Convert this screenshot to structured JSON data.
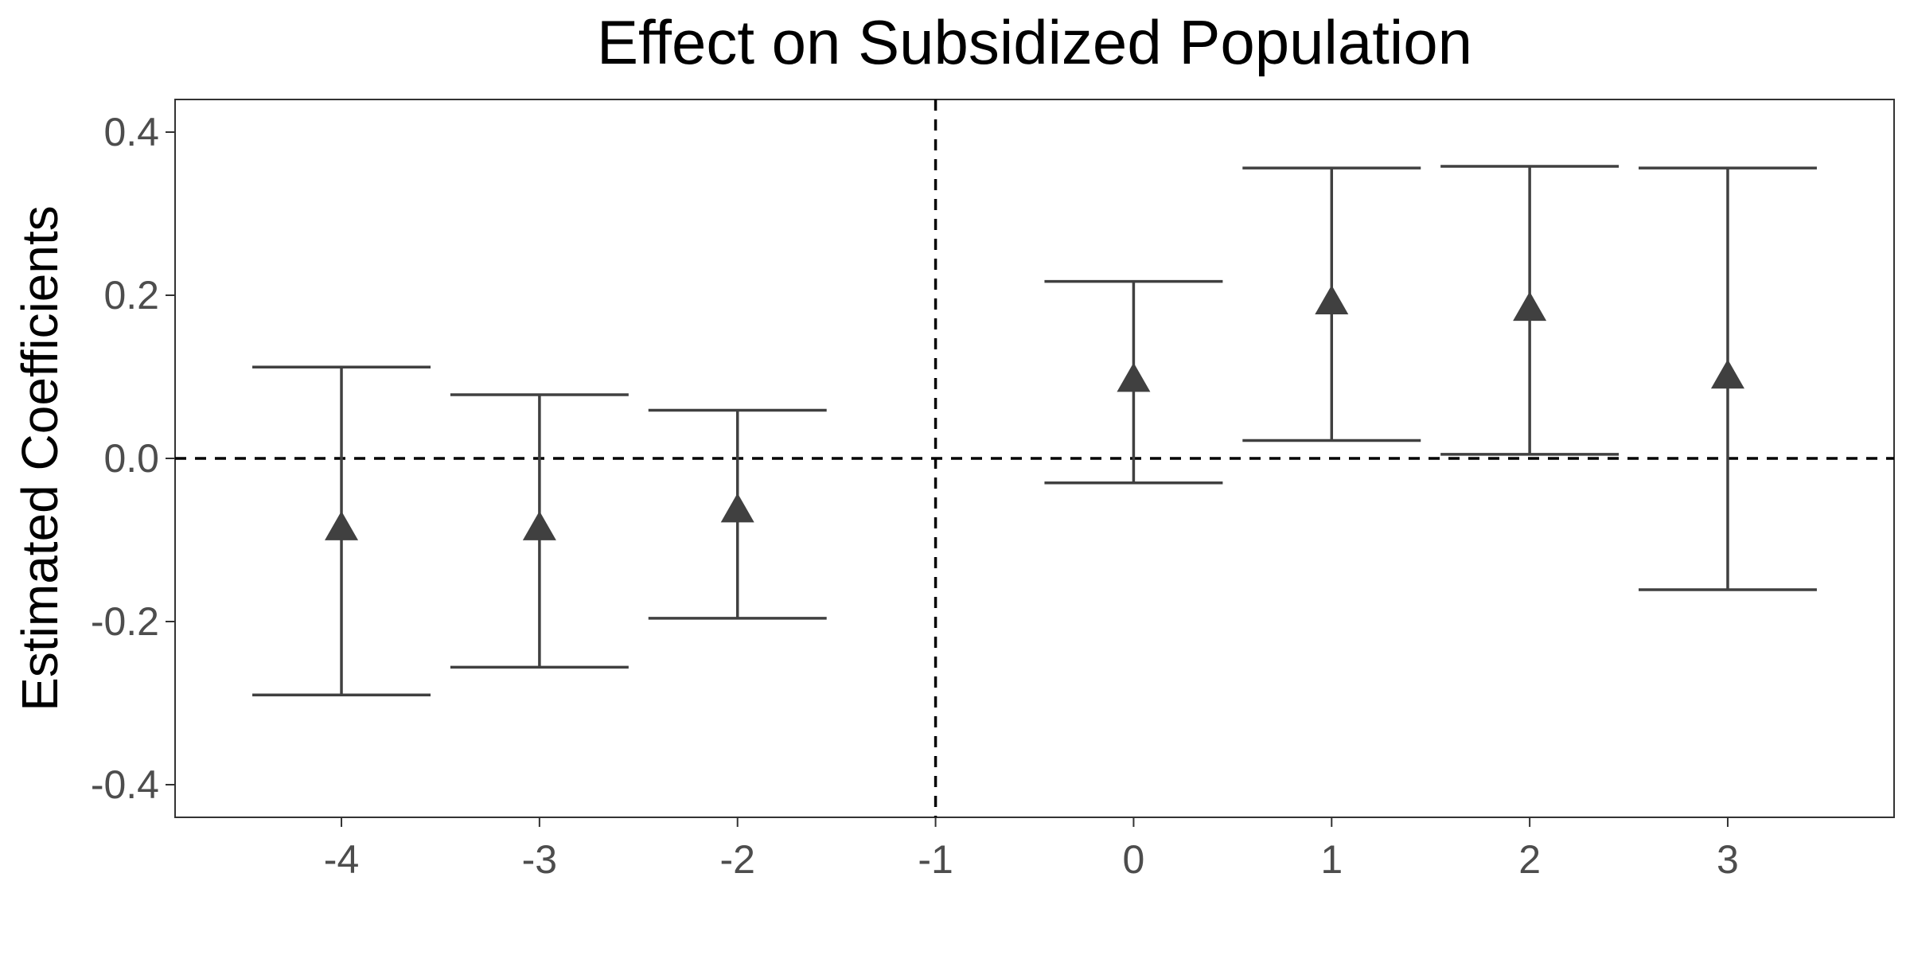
{
  "chart_data": {
    "type": "scatter",
    "title": "Effect on Subsidized Population",
    "xlabel": "",
    "ylabel": "Estimated Coefficients",
    "x_ticks": [
      "-4",
      "-3",
      "-2",
      "-1",
      "0",
      "1",
      "2",
      "3"
    ],
    "y_ticks": [
      "0.4",
      "0.2",
      "0.0",
      "-0.2",
      "-0.4"
    ],
    "xlim": [
      -4.84,
      3.84
    ],
    "ylim": [
      -0.44,
      0.44
    ],
    "reference_lines": {
      "horizontal": 0.0,
      "vertical": -1
    },
    "grid": false,
    "marker": "triangle",
    "colors": {
      "marker": "#404040",
      "errorbar": "#404040",
      "reference": "#000000",
      "axis_frame": "#333333"
    },
    "series": [
      {
        "points": [
          {
            "x": -4,
            "y": -0.085,
            "ci_low": -0.29,
            "ci_high": 0.112
          },
          {
            "x": -3,
            "y": -0.085,
            "ci_low": -0.256,
            "ci_high": 0.078
          },
          {
            "x": -2,
            "y": -0.063,
            "ci_low": -0.196,
            "ci_high": 0.059
          },
          {
            "x": 0,
            "y": 0.097,
            "ci_low": -0.03,
            "ci_high": 0.217
          },
          {
            "x": 1,
            "y": 0.192,
            "ci_low": 0.022,
            "ci_high": 0.356
          },
          {
            "x": 2,
            "y": 0.184,
            "ci_low": 0.005,
            "ci_high": 0.358
          },
          {
            "x": 3,
            "y": 0.101,
            "ci_low": -0.161,
            "ci_high": 0.356
          }
        ]
      }
    ]
  }
}
